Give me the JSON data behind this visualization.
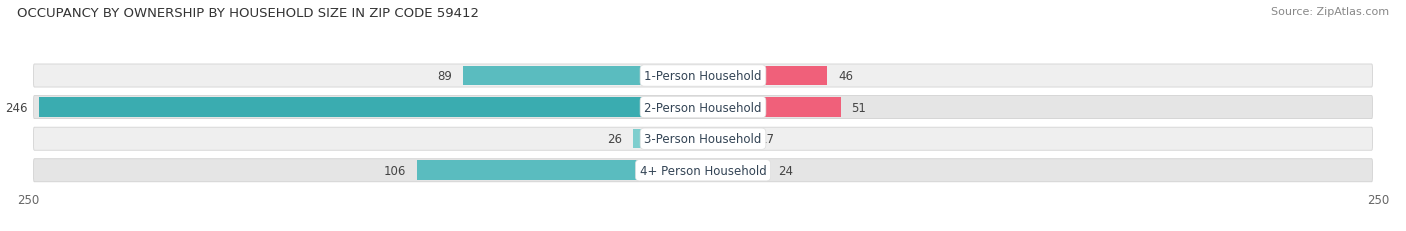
{
  "title": "OCCUPANCY BY OWNERSHIP BY HOUSEHOLD SIZE IN ZIP CODE 59412",
  "source": "Source: ZipAtlas.com",
  "categories": [
    "1-Person Household",
    "2-Person Household",
    "3-Person Household",
    "4+ Person Household"
  ],
  "owner_values": [
    89,
    246,
    26,
    106
  ],
  "renter_values": [
    46,
    51,
    17,
    24
  ],
  "owner_color_strong": "#4db8bc",
  "owner_color_light": "#7fcfcf",
  "renter_color_strong": "#f0607a",
  "renter_color_light": "#f5a0b8",
  "row_bg_odd": "#f0f0f0",
  "row_bg_even": "#e8e8e8",
  "axis_max": 250,
  "value_fontsize": 8.5,
  "category_fontsize": 8.5,
  "title_fontsize": 9.5,
  "source_fontsize": 8,
  "axis_fontsize": 8.5
}
